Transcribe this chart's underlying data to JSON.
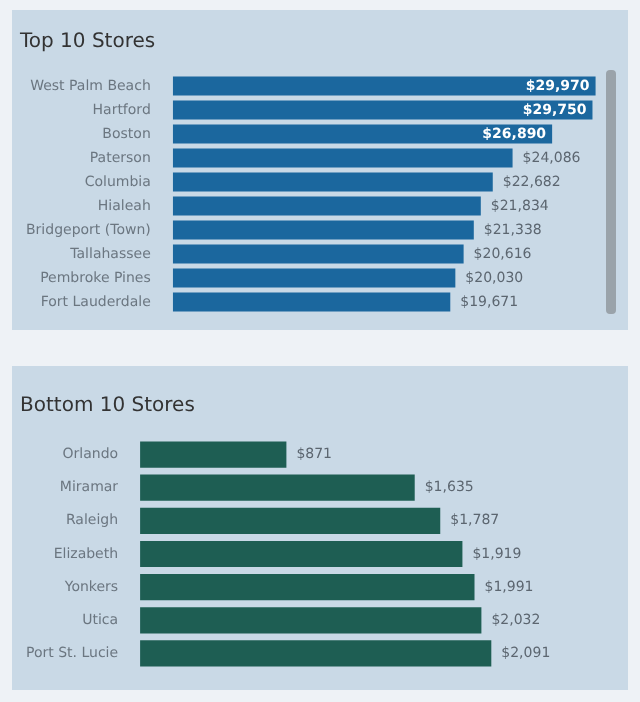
{
  "chart_data": [
    {
      "type": "bar",
      "orientation": "horizontal",
      "title": "Top 10 Stores",
      "color": "#1b679e",
      "categories": [
        "West Palm Beach",
        "Hartford",
        "Boston",
        "Paterson",
        "Columbia",
        "Hialeah",
        "Bridgeport (Town)",
        "Tallahassee",
        "Pembroke Pines",
        "Fort Lauderdale"
      ],
      "values": [
        29970,
        29750,
        26890,
        24086,
        22682,
        21834,
        21338,
        20616,
        20030,
        19671
      ],
      "value_labels": [
        "$29,970",
        "$29,750",
        "$26,890",
        "$24,086",
        "$22,682",
        "$21,834",
        "$21,338",
        "$20,616",
        "$20,030",
        "$19,671"
      ]
    },
    {
      "type": "bar",
      "orientation": "horizontal",
      "title": "Bottom 10 Stores",
      "color": "#1e5e53",
      "categories": [
        "Orlando",
        "Miramar",
        "Raleigh",
        "Elizabeth",
        "Yonkers",
        "Utica",
        "Port St. Lucie"
      ],
      "values": [
        871,
        1635,
        1787,
        1919,
        1991,
        2032,
        2091
      ],
      "value_labels": [
        "$871",
        "$1,635",
        "$1,787",
        "$1,919",
        "$1,991",
        "$2,032",
        "$2,091"
      ]
    }
  ]
}
